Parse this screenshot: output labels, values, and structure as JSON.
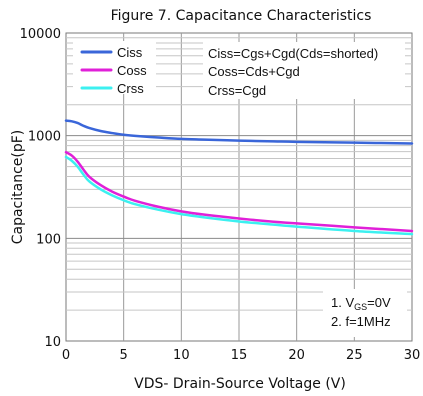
{
  "chart_data": {
    "type": "line",
    "title": "Figure 7. Capacitance Characteristics",
    "xlabel": "VDS- Drain-Source Voltage (V)",
    "ylabel": "Capacitance(pF)",
    "xlim": [
      0,
      30
    ],
    "ylim": [
      10,
      10000
    ],
    "yscale": "log",
    "grid": true,
    "legend_position": "top-left",
    "x_ticks": [
      "0",
      "5",
      "10",
      "15",
      "20",
      "25",
      "30"
    ],
    "y_ticks": [
      "10",
      "100",
      "1000",
      "10000"
    ],
    "x_tick_values": [
      0,
      5,
      10,
      15,
      20,
      25,
      30
    ],
    "y_tick_values": [
      10,
      100,
      1000,
      10000
    ],
    "series": [
      {
        "name": "Ciss",
        "color": "#3a66d9",
        "x": [
          0,
          0.5,
          1,
          1.5,
          2,
          3,
          4,
          5,
          6,
          8,
          10,
          12,
          15,
          18,
          20,
          25,
          30
        ],
        "y": [
          1400,
          1380,
          1330,
          1250,
          1190,
          1110,
          1060,
          1020,
          995,
          960,
          930,
          915,
          895,
          880,
          870,
          855,
          840
        ]
      },
      {
        "name": "Coss",
        "color": "#e020d8",
        "x": [
          0,
          0.5,
          1,
          1.5,
          2,
          3,
          4,
          5,
          6,
          8,
          10,
          12,
          15,
          18,
          20,
          25,
          30
        ],
        "y": [
          690,
          640,
          560,
          470,
          400,
          330,
          285,
          255,
          232,
          203,
          183,
          170,
          156,
          145,
          140,
          128,
          118
        ]
      },
      {
        "name": "Crss",
        "color": "#3cf0f0",
        "x": [
          0,
          0.5,
          1,
          1.5,
          2,
          3,
          4,
          5,
          6,
          8,
          10,
          12,
          15,
          18,
          20,
          25,
          30
        ],
        "y": [
          620,
          570,
          500,
          420,
          360,
          300,
          262,
          235,
          215,
          190,
          172,
          160,
          146,
          136,
          130,
          118,
          110
        ]
      }
    ],
    "annotations": {
      "formulas": [
        "Ciss=Cgs+Cgd(Cds=shorted)",
        "Coss=Cds+Cgd",
        "Crss=Cgd"
      ],
      "conditions": {
        "line1_prefix": "1. V",
        "line1_sub": "GS",
        "line1_suffix": "=0V",
        "line2": "2. f=1MHz"
      }
    }
  }
}
